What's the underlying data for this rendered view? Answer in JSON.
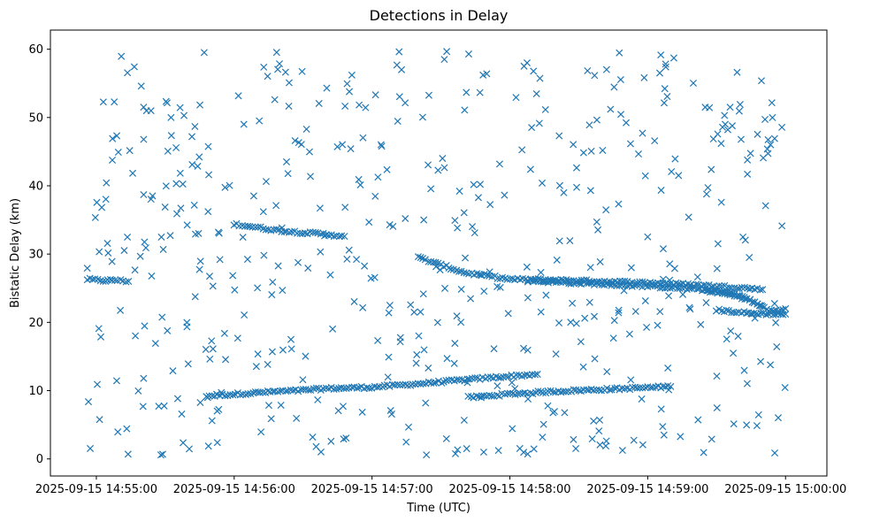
{
  "chart_data": {
    "type": "scatter",
    "title": "Detections in Delay",
    "xlabel": "Time (UTC)",
    "ylabel": "Bistatic Delay (km)",
    "x_unit": "time",
    "xlim": [
      "2025-09-15 14:54:40",
      "2025-09-15 15:00:18"
    ],
    "ylim": [
      -2.5,
      62.8
    ],
    "x_ticks": [
      {
        "value": "2025-09-15 14:55:00",
        "label": "2025-09-15 14:55:00"
      },
      {
        "value": "2025-09-15 14:56:00",
        "label": "2025-09-15 14:56:00"
      },
      {
        "value": "2025-09-15 14:57:00",
        "label": "2025-09-15 14:57:00"
      },
      {
        "value": "2025-09-15 14:58:00",
        "label": "2025-09-15 14:58:00"
      },
      {
        "value": "2025-09-15 14:59:00",
        "label": "2025-09-15 14:59:00"
      },
      {
        "value": "2025-09-15 15:00:00",
        "label": "2025-09-15 15:00:00"
      }
    ],
    "y_ticks": [
      0,
      10,
      20,
      30,
      40,
      50,
      60
    ],
    "grid": false,
    "marker": "x",
    "color": "#1f77b4",
    "tracks": [
      {
        "x": [
          "2025-09-15 14:54:56",
          "2025-09-15 14:55:04",
          "2025-09-15 14:55:08",
          "2025-09-15 14:55:14"
        ],
        "y": [
          26.3,
          26.1,
          26.2,
          26.0
        ]
      },
      {
        "x": [
          "2025-09-15 14:55:48",
          "2025-09-15 14:56:05",
          "2025-09-15 14:56:20",
          "2025-09-15 14:56:28",
          "2025-09-15 14:56:40",
          "2025-09-15 14:57:00",
          "2025-09-15 14:57:20",
          "2025-09-15 14:57:38",
          "2025-09-15 14:57:55",
          "2025-09-15 14:58:12"
        ],
        "y": [
          9.2,
          9.6,
          9.9,
          10.0,
          10.3,
          10.5,
          11.0,
          11.5,
          12.0,
          12.4
        ]
      },
      {
        "x": [
          "2025-09-15 14:57:42",
          "2025-09-15 14:58:00",
          "2025-09-15 14:58:20",
          "2025-09-15 14:58:50",
          "2025-09-15 14:59:10"
        ],
        "y": [
          9.0,
          9.5,
          9.9,
          10.3,
          10.6
        ]
      },
      {
        "x": [
          "2025-09-15 14:56:00",
          "2025-09-15 14:56:08",
          "2025-09-15 14:56:16",
          "2025-09-15 14:56:24",
          "2025-09-15 14:56:32",
          "2025-09-15 14:56:40",
          "2025-09-15 14:56:48"
        ],
        "y": [
          34.4,
          34.0,
          33.6,
          33.3,
          33.1,
          32.9,
          32.6
        ]
      },
      {
        "x": [
          "2025-09-15 14:57:20",
          "2025-09-15 14:57:40",
          "2025-09-15 14:58:00",
          "2025-09-15 14:58:20",
          "2025-09-15 14:58:40",
          "2025-09-15 14:59:00",
          "2025-09-15 14:59:20",
          "2025-09-15 14:59:40",
          "2025-09-15 14:59:50"
        ],
        "y": [
          29.5,
          27.3,
          26.3,
          26.2,
          26.0,
          25.8,
          25.5,
          25.1,
          24.8
        ]
      },
      {
        "x": [
          "2025-09-15 14:58:08",
          "2025-09-15 14:58:20",
          "2025-09-15 14:58:40",
          "2025-09-15 14:59:00",
          "2025-09-15 14:59:15",
          "2025-09-15 14:59:30",
          "2025-09-15 14:59:40",
          "2025-09-15 14:59:50"
        ],
        "y": [
          26.1,
          25.9,
          25.6,
          25.3,
          25.0,
          24.6,
          24.0,
          22.3
        ]
      },
      {
        "x": [
          "2025-09-15 14:59:25",
          "2025-09-15 14:59:40",
          "2025-09-15 14:59:55",
          "2025-09-15 15:00:00"
        ],
        "y": [
          24.7,
          23.8,
          21.5,
          22.0
        ]
      },
      {
        "x": [
          "2025-09-15 14:59:30",
          "2025-09-15 14:59:45",
          "2025-09-15 15:00:00"
        ],
        "y": [
          21.8,
          21.3,
          21.2
        ]
      }
    ],
    "noise_count": 520,
    "noise_y_range": [
      0.5,
      59.8
    ]
  }
}
